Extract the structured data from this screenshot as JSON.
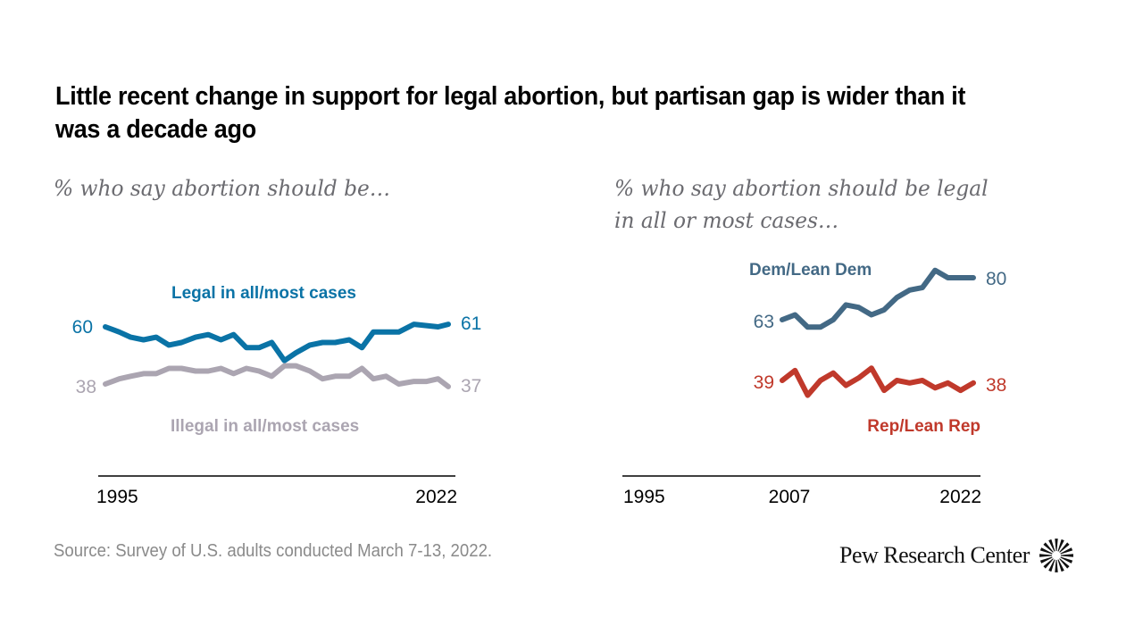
{
  "header": {
    "title": "Little recent change in support for legal abortion, but partisan gap is wider than it was a decade ago"
  },
  "footer": {
    "source": "Source: Survey of U.S. adults conducted March 7-13, 2022.",
    "logo_text": "Pew Research Center",
    "logo_icon": "pew-sunburst-icon"
  },
  "colors": {
    "legal": "#0a73a6",
    "illegal": "#aba5b1",
    "dem": "#436985",
    "rep": "#c0392b",
    "axis": "#000000"
  },
  "chart_data": [
    {
      "type": "line",
      "subtitle": "% who say abortion should be…",
      "xlabel": "",
      "ylabel": "",
      "x_ticks": [
        "1995",
        "2022"
      ],
      "xlim": [
        1995,
        2022
      ],
      "ylim": [
        30,
        70
      ],
      "grid": false,
      "series": [
        {
          "name": "Legal in all/most cases",
          "color_key": "legal",
          "start_label": "60",
          "end_label": "61",
          "x": [
            1995,
            1996.1,
            1997.0,
            1998.0,
            1999.0,
            2000.0,
            2001.0,
            2002.1,
            2003.1,
            2004.1,
            2005.1,
            2006.1,
            2007.1,
            2008.1,
            2009.1,
            2010.0,
            2011.1,
            2012.1,
            2013.1,
            2014.2,
            2015.2,
            2016.1,
            2017.1,
            2018.1,
            2019.3,
            2021.2,
            2022
          ],
          "values": [
            60,
            58,
            56,
            55,
            56,
            53,
            54,
            56,
            57,
            55,
            57,
            52,
            52,
            54,
            47,
            50,
            53,
            54,
            54,
            55,
            52,
            58,
            58,
            58,
            61,
            60,
            61
          ]
        },
        {
          "name": "Illegal in all/most cases",
          "color_key": "illegal",
          "start_label": "38",
          "end_label": "37",
          "x": [
            1995,
            1996.1,
            1997.0,
            1998.0,
            1999.0,
            2000.0,
            2001.0,
            2002.1,
            2003.1,
            2004.1,
            2005.1,
            2006.1,
            2007.1,
            2008.1,
            2009.1,
            2010.0,
            2011.1,
            2012.1,
            2013.1,
            2014.2,
            2015.2,
            2016.1,
            2017.1,
            2018.1,
            2019.3,
            2020.3,
            2021.2,
            2022
          ],
          "values": [
            38,
            40,
            41,
            42,
            42,
            44,
            44,
            43,
            43,
            44,
            42,
            44,
            43,
            41,
            45,
            45,
            43,
            40,
            41,
            41,
            44,
            40,
            41,
            38,
            39,
            39,
            40,
            37
          ]
        }
      ]
    },
    {
      "type": "line",
      "subtitle": "% who say abortion should be legal in all or most cases…",
      "xlabel": "",
      "ylabel": "",
      "x_ticks": [
        "1995",
        "2007",
        "2022"
      ],
      "xlim": [
        1995,
        2022
      ],
      "ylim": [
        30,
        90
      ],
      "grid": false,
      "series": [
        {
          "name": "Dem/Lean Dem",
          "color_key": "dem",
          "start_label": "63",
          "end_label": "80",
          "x": [
            2007,
            2008,
            2009,
            2010,
            2011,
            2012,
            2013,
            2014,
            2015,
            2016,
            2017,
            2018,
            2019,
            2020,
            2021,
            2022
          ],
          "values": [
            63,
            65,
            60,
            60,
            63,
            69,
            68,
            65,
            67,
            72,
            75,
            76,
            83,
            80,
            80,
            80
          ]
        },
        {
          "name": "Rep/Lean Rep",
          "color_key": "rep",
          "start_label": "39",
          "end_label": "38",
          "x": [
            2007,
            2008,
            2009,
            2010,
            2011,
            2012,
            2013,
            2014,
            2015,
            2016,
            2017,
            2018,
            2019,
            2020,
            2021,
            2022
          ],
          "values": [
            39,
            43,
            33,
            39,
            42,
            37,
            40,
            44,
            35,
            39,
            38,
            39,
            36,
            38,
            35,
            38
          ]
        }
      ]
    }
  ]
}
